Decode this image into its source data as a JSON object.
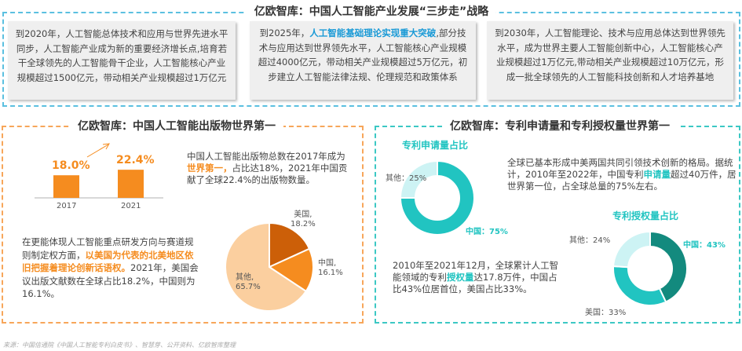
{
  "top": {
    "title": "亿欧智库：中国人工智能产业发展“三步走”战略",
    "cards": [
      {
        "pre": "到2020年，人工智能总体技术和应用与世界先进水平同步，人工智能产业成为新的重要经济增长点,培育若干全球领先的人工智能骨干企业，人工智能核心产业规模超过1500亿元，带动相关产业规模超过1万亿元",
        "hl": "",
        "post": ""
      },
      {
        "pre": "到2025年，",
        "hl": "人工智能基础理论实现重大突破",
        "post": ",部分技术与应用达到世界领先水平，人工智能核心产业规模超过4000亿元，带动相关产业规模超过5万亿元，初步建立人工智能法律法规、伦理规范和政策体系"
      },
      {
        "pre": "到2030年，人工智能理论、技术与应用总体达到世界领先水平，成为世界主要人工智能创新中心，人工智能核心产业规模超过1万亿元,带动相关产业规模超过10万亿元，形成一批全球领先的人工智能科技创新和人才培养基地",
        "hl": "",
        "post": ""
      }
    ]
  },
  "left": {
    "title": "亿欧智库：中国人工智能出版物世界第一",
    "text1": {
      "pre": "中国人工智能出版物总数在2017年成为",
      "hl": "世界第一，",
      "post": "占比达18%，2021年中国贡献了全球22.4%的出版物数量。"
    },
    "text2": {
      "pre": "在更能体现人工智能重点研发方向与赛道规则制定权方面，",
      "hl": "以美国为代表的北美地区依旧把握着理论创新话语权。",
      "post": "2021年，美国会议出版文献数在全球占比18.2%，中国则为16.1%。"
    }
  },
  "right": {
    "title": "亿欧智库：专利申请量和专利授权量世界第一",
    "donut1_title": "专利申请量占比",
    "donut2_title": "专利授权量占比",
    "text1": {
      "pre": "全球已基本形成中美两国共同引领技术创新的格局。据统计，2010年至2022年，中国专利",
      "hl": "申请量",
      "post": "超过40万件，居世界第一位，占全球总量的75%左右。"
    },
    "text2": {
      "pre": "2010年至2021年12月，全球累计人工智能领域的专利",
      "hl": "授权量",
      "post": "达17.8万件，中国占比43%位居首位，美国占比33%。"
    }
  },
  "source": "来源：中国信通院《中国人工智能专利白皮书》、智慧芽、公开资料、亿欧智库整理",
  "colors": {
    "orange": "#f58c1f",
    "dark_orange": "#cc5f08",
    "light_orange": "#fbcf9f",
    "teal": "#21c4c1",
    "dark_teal": "#138a7e",
    "light_teal": "#cdf3f4",
    "blue": "#1a9ad6"
  },
  "chart_data": [
    {
      "type": "bar",
      "categories": [
        "2017",
        "2021"
      ],
      "values": [
        18.0,
        22.4
      ],
      "data_labels": [
        "18.0%",
        "22.4%"
      ],
      "ylabel": "",
      "xlabel": ""
    },
    {
      "type": "pie",
      "labels": [
        "美国",
        "中国",
        "其他"
      ],
      "values": [
        18.2,
        16.1,
        65.7
      ],
      "data_labels": [
        "美国,\n18.2%",
        "中国,\n16.1%",
        "其他,\n65.7%"
      ]
    },
    {
      "type": "pie",
      "donut": true,
      "title": "专利申请量占比",
      "labels": [
        "中国",
        "其他"
      ],
      "values": [
        75,
        25
      ],
      "data_labels": [
        "中国：75%",
        "其他：25%"
      ]
    },
    {
      "type": "pie",
      "donut": true,
      "title": "专利授权量占比",
      "labels": [
        "中国",
        "美国",
        "其他"
      ],
      "values": [
        43,
        33,
        24
      ],
      "data_labels": [
        "中国：43%",
        "美国：33%",
        "其他：24%"
      ]
    }
  ]
}
